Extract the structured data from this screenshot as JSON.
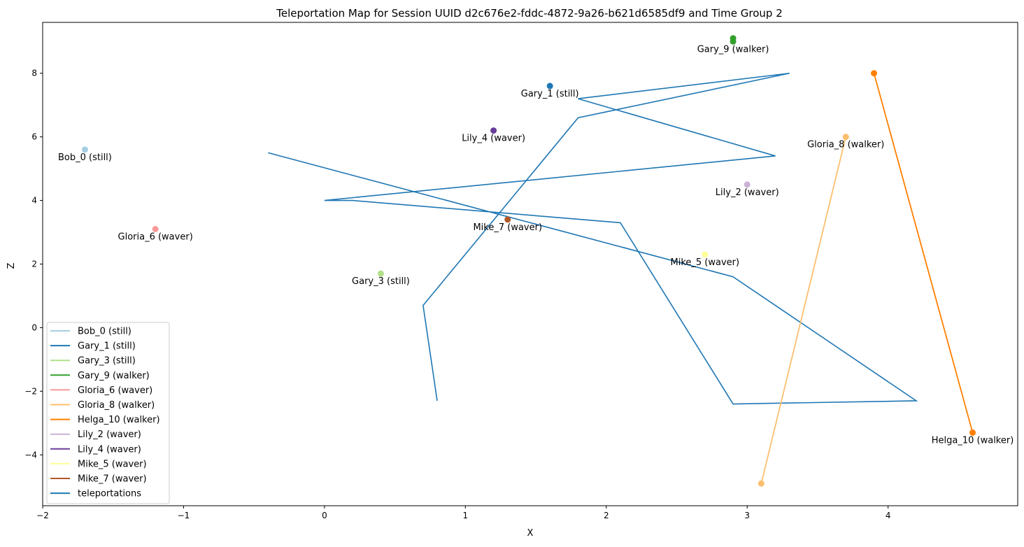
{
  "chart_data": {
    "type": "scatter",
    "title": "Teleportation Map for Session UUID d2c676e2-fddc-4872-9a26-b621d6585df9 and Time Group 2",
    "xlabel": "X",
    "ylabel": "Z",
    "xlim": [
      -2.0,
      4.92
    ],
    "ylim": [
      -5.6,
      9.6
    ],
    "xticks": [
      -2,
      -1,
      0,
      1,
      2,
      3,
      4
    ],
    "yticks": [
      -4,
      -2,
      0,
      2,
      4,
      6,
      8
    ],
    "grid": false,
    "legend_position": "lower-left",
    "series": [
      {
        "name": "Bob_0 (still)",
        "color": "#a6cee3",
        "points": [
          [
            -1.7,
            5.6
          ]
        ],
        "label_at": [
          -1.7,
          5.6
        ]
      },
      {
        "name": "Gary_1 (still)",
        "color": "#1f78b4",
        "points": [
          [
            1.6,
            7.6
          ]
        ],
        "label_at": [
          1.6,
          7.6
        ]
      },
      {
        "name": "Gary_3 (still)",
        "color": "#b2df8a",
        "points": [
          [
            0.4,
            1.7
          ]
        ],
        "label_at": [
          0.4,
          1.7
        ]
      },
      {
        "name": "Gary_9 (walker)",
        "color": "#33a02c",
        "points": [
          [
            2.9,
            9.1
          ],
          [
            2.9,
            9.0
          ]
        ],
        "label_at": [
          2.9,
          9.0
        ]
      },
      {
        "name": "Gloria_6 (waver)",
        "color": "#fb9a99",
        "points": [
          [
            -1.2,
            3.1
          ]
        ],
        "label_at": [
          -1.2,
          3.1
        ]
      },
      {
        "name": "Gloria_8 (walker)",
        "color": "#fdbf6f",
        "points": [
          [
            3.7,
            6.0
          ],
          [
            3.1,
            -4.9
          ]
        ],
        "label_at": [
          3.7,
          6.0
        ]
      },
      {
        "name": "Helga_10 (walker)",
        "color": "#ff7f00",
        "points": [
          [
            3.9,
            8.0
          ],
          [
            4.6,
            -3.3
          ]
        ],
        "label_at": [
          4.6,
          -3.3
        ]
      },
      {
        "name": "Lily_2 (waver)",
        "color": "#cab2d6",
        "points": [
          [
            3.0,
            4.5
          ]
        ],
        "label_at": [
          3.0,
          4.5
        ]
      },
      {
        "name": "Lily_4 (waver)",
        "color": "#6a3d9a",
        "points": [
          [
            1.2,
            6.2
          ]
        ],
        "label_at": [
          1.2,
          6.2
        ]
      },
      {
        "name": "Mike_5 (waver)",
        "color": "#ffff99",
        "points": [
          [
            2.7,
            2.3
          ]
        ],
        "label_at": [
          2.7,
          2.3
        ]
      },
      {
        "name": "Mike_7 (waver)",
        "color": "#b15928",
        "points": [
          [
            1.3,
            3.4
          ]
        ],
        "label_at": [
          1.3,
          3.4
        ]
      }
    ],
    "teleportations": {
      "name": "teleportations",
      "color": "#1f77b4",
      "points": [
        [
          -0.4,
          5.5
        ],
        [
          2.9,
          1.6
        ],
        [
          4.2,
          -2.3
        ],
        [
          2.9,
          -2.4
        ],
        [
          2.1,
          3.3
        ],
        [
          0.2,
          4.0
        ],
        [
          0.0,
          4.0
        ],
        [
          3.2,
          5.4
        ],
        [
          1.8,
          7.2
        ],
        [
          3.3,
          8.0
        ],
        [
          1.8,
          6.6
        ],
        [
          0.7,
          0.7
        ],
        [
          0.8,
          -2.3
        ]
      ]
    },
    "legend": [
      "Bob_0 (still)",
      "Gary_1 (still)",
      "Gary_3 (still)",
      "Gary_9 (walker)",
      "Gloria_6 (waver)",
      "Gloria_8 (walker)",
      "Helga_10 (walker)",
      "Lily_2 (waver)",
      "Lily_4 (waver)",
      "Mike_5 (waver)",
      "Mike_7 (waver)",
      "teleportations"
    ]
  }
}
